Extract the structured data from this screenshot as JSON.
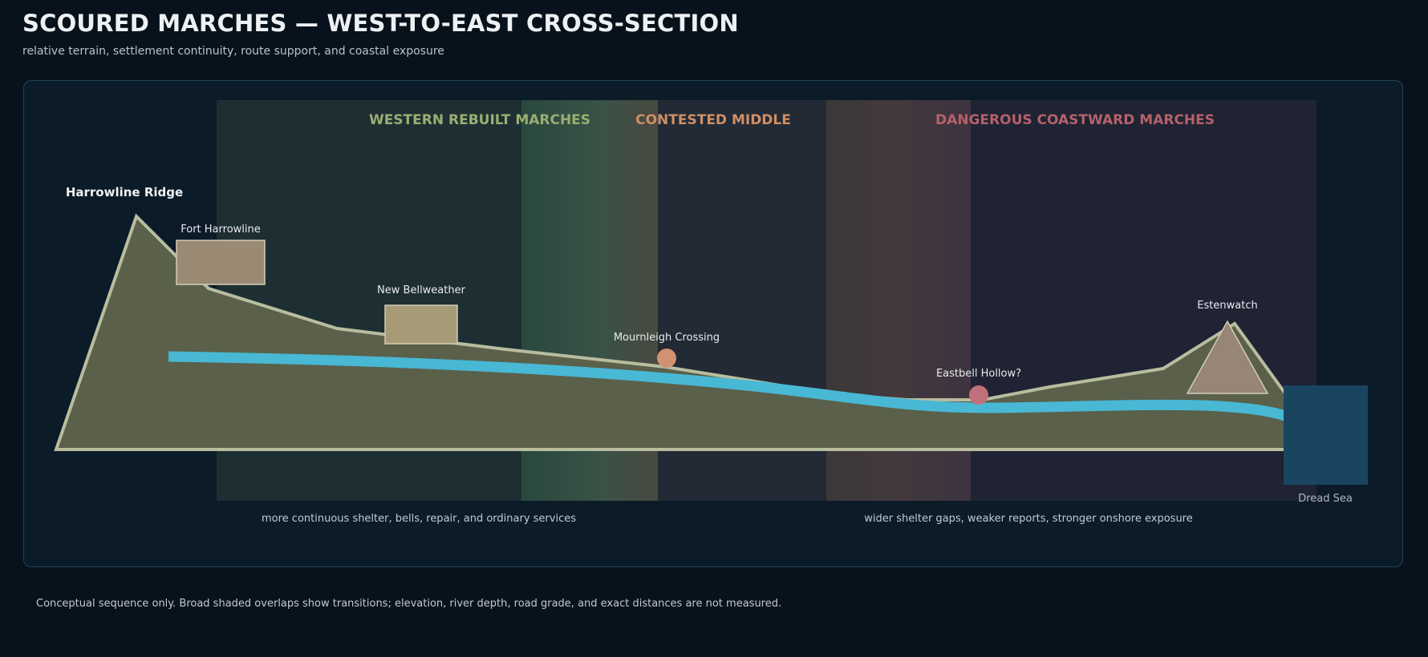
{
  "title": "SCOURED MARCHES — WEST-TO-EAST CROSS-SECTION",
  "subtitle": "relative terrain, settlement continuity, route support, and coastal exposure",
  "zones": {
    "west": "WESTERN REBUILT MARCHES",
    "middle": "CONTESTED MIDDLE",
    "coast": "DANGEROUS COASTWARD MARCHES"
  },
  "places": {
    "ridge": "Harrowline Ridge",
    "fort": "Fort Harrowline",
    "bellweather": "New Bellweather",
    "mournleigh": "Mournleigh Crossing",
    "eastbell": "Eastbell Hollow?",
    "estenwatch": "Estenwatch",
    "sea": "Dread Sea"
  },
  "notes": {
    "west": "more continuous shelter, bells, repair, and ordinary services",
    "coast": "wider shelter gaps, weaker reports, stronger onshore exposure"
  },
  "footnote": "Conceptual sequence only. Broad shaded overlaps show transitions; elevation, river depth, road grade, and exact distances are not measured.",
  "colors": {
    "background": "#08121c",
    "panel": "#0c1b28",
    "west_zone": "#1e2f33",
    "middle_zone": "#232a35",
    "coast_zone": "#1f2333",
    "west_label": "#9aae72",
    "middle_label": "#cf8f64",
    "coast_label": "#b5616a",
    "terrain": "#5a604a",
    "terrain_outline": "#b8bd9e",
    "river": "#48b8d4",
    "sea": "#1a4560",
    "fort": "#9a8a74",
    "bellweather": "#a69b76",
    "mournleigh": "#d09270",
    "eastbell": "#c0707a",
    "estenwatch": "#978677"
  }
}
